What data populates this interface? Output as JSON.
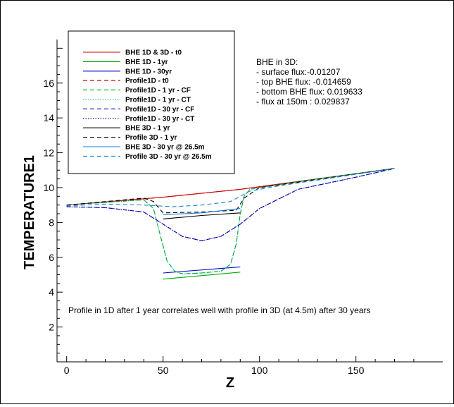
{
  "chart_data": {
    "type": "line",
    "xlabel": "Z",
    "ylabel": "TEMPERATURE1",
    "xlim": [
      -5,
      195
    ],
    "ylim": [
      0,
      18.5
    ],
    "x_ticks": [
      0,
      50,
      100,
      150
    ],
    "y_ticks": [
      2,
      4,
      6,
      8,
      10,
      12,
      14,
      16
    ],
    "grid": false,
    "legend_position": "top-left",
    "series": [
      {
        "name": "BHE 1D & 3D - t0",
        "color": "#cc0000",
        "dash": "solid",
        "x": [
          0,
          50,
          90,
          130,
          170
        ],
        "y": [
          9.0,
          9.45,
          9.9,
          10.5,
          11.1
        ]
      },
      {
        "name": "BHE 1D - 1yr",
        "color": "#00aa00",
        "dash": "solid",
        "x": [
          50,
          90
        ],
        "y": [
          4.75,
          5.15
        ]
      },
      {
        "name": "BHE 1D - 30yr",
        "color": "#0000cc",
        "dash": "solid",
        "x": [
          50,
          90
        ],
        "y": [
          5.1,
          5.45
        ]
      },
      {
        "name": "Profile1D - t0",
        "color": "#cc0000",
        "dash": "dashed",
        "x": [
          0,
          50,
          90,
          130,
          170
        ],
        "y": [
          9.0,
          9.45,
          9.9,
          10.5,
          11.1
        ]
      },
      {
        "name": "Profile1D - 1 yr - CF",
        "color": "#00aa00",
        "dash": "dashed",
        "x": [
          0,
          20,
          40,
          45,
          48,
          52,
          56,
          60,
          70,
          80,
          85,
          88,
          90,
          92,
          95,
          100,
          130,
          170
        ],
        "y": [
          9.0,
          9.15,
          9.3,
          8.8,
          7.5,
          5.8,
          5.2,
          5.05,
          5.1,
          5.2,
          5.6,
          6.8,
          8.5,
          9.5,
          9.9,
          10.0,
          10.5,
          11.1
        ]
      },
      {
        "name": "Profile1D - 1 yr - CT",
        "color": "#00aa88",
        "dash": "dotted",
        "x": [
          0,
          20,
          40,
          45,
          48,
          52,
          56,
          60,
          70,
          80,
          85,
          88,
          90,
          92,
          95,
          100,
          130,
          170
        ],
        "y": [
          9.0,
          9.15,
          9.3,
          8.8,
          7.5,
          5.8,
          5.2,
          5.05,
          5.1,
          5.2,
          5.6,
          6.8,
          8.5,
          9.5,
          9.9,
          10.0,
          10.5,
          11.1
        ]
      },
      {
        "name": "Profile1D - 30 yr - CF",
        "color": "#0000cc",
        "dash": "dashed",
        "x": [
          0,
          20,
          40,
          50,
          60,
          70,
          80,
          90,
          100,
          120,
          150,
          170
        ],
        "y": [
          8.9,
          8.85,
          8.6,
          7.9,
          7.2,
          6.95,
          7.2,
          7.9,
          8.8,
          9.9,
          10.6,
          11.1
        ]
      },
      {
        "name": "Profile1D - 30 yr - CT",
        "color": "#000088",
        "dash": "dotted",
        "x": [
          0,
          20,
          40,
          50,
          60,
          70,
          80,
          90,
          100,
          120,
          150,
          170
        ],
        "y": [
          8.9,
          8.85,
          8.6,
          7.9,
          7.2,
          6.95,
          7.2,
          7.9,
          8.8,
          9.9,
          10.6,
          11.1
        ]
      },
      {
        "name": "BHE 3D - 1 yr",
        "color": "#000000",
        "dash": "solid",
        "x": [
          50,
          70,
          90
        ],
        "y": [
          8.2,
          8.4,
          8.55
        ]
      },
      {
        "name": "Profile 3D - 1 yr",
        "color": "#000000",
        "dash": "dashed",
        "x": [
          0,
          40,
          45,
          50,
          70,
          88,
          92,
          100,
          170
        ],
        "y": [
          9.0,
          9.4,
          9.2,
          8.55,
          8.6,
          8.7,
          9.4,
          10.0,
          11.1
        ]
      },
      {
        "name": "BHE 3D - 30 yr @ 26.5m",
        "color": "#1a7fd6",
        "dash": "solid",
        "x": [
          50,
          70,
          90
        ],
        "y": [
          8.45,
          8.55,
          8.8
        ]
      },
      {
        "name": "Profile 3D - 30 yr @ 26.5m",
        "color": "#1a7fd6",
        "dash": "dashed",
        "x": [
          0,
          20,
          40,
          55,
          70,
          85,
          95,
          110,
          170
        ],
        "y": [
          8.95,
          9.05,
          9.0,
          8.9,
          9.0,
          9.2,
          9.8,
          10.1,
          11.1
        ]
      }
    ],
    "annotations": {
      "bhe3d_title": "BHE in 3D:",
      "bhe3d_lines": [
        "- surface flux:-0.01207",
        "- top BHE flux: -0.014659",
        "- bottom BHE flux: 0.019633",
        "- flux at 150m : 0.029837"
      ],
      "note": "Profile in 1D after 1 year correlates well with profile in 3D (at 4.5m) after 30 years"
    }
  }
}
